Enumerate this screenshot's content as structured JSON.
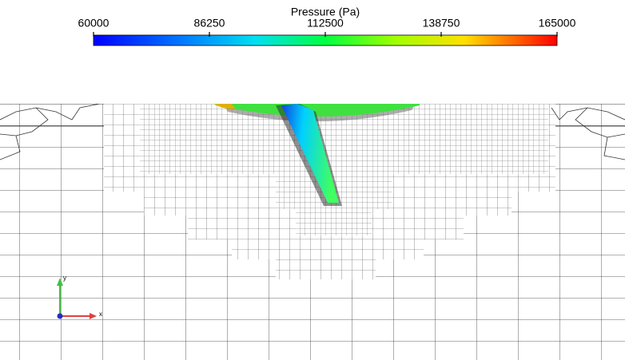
{
  "colorbar": {
    "title": "Pressure (Pa)",
    "range": [
      60000,
      165000
    ],
    "ticks": [
      60000,
      86250,
      112500,
      138750,
      165000
    ]
  },
  "axes_triad": {
    "x": "x",
    "y": "y"
  }
}
